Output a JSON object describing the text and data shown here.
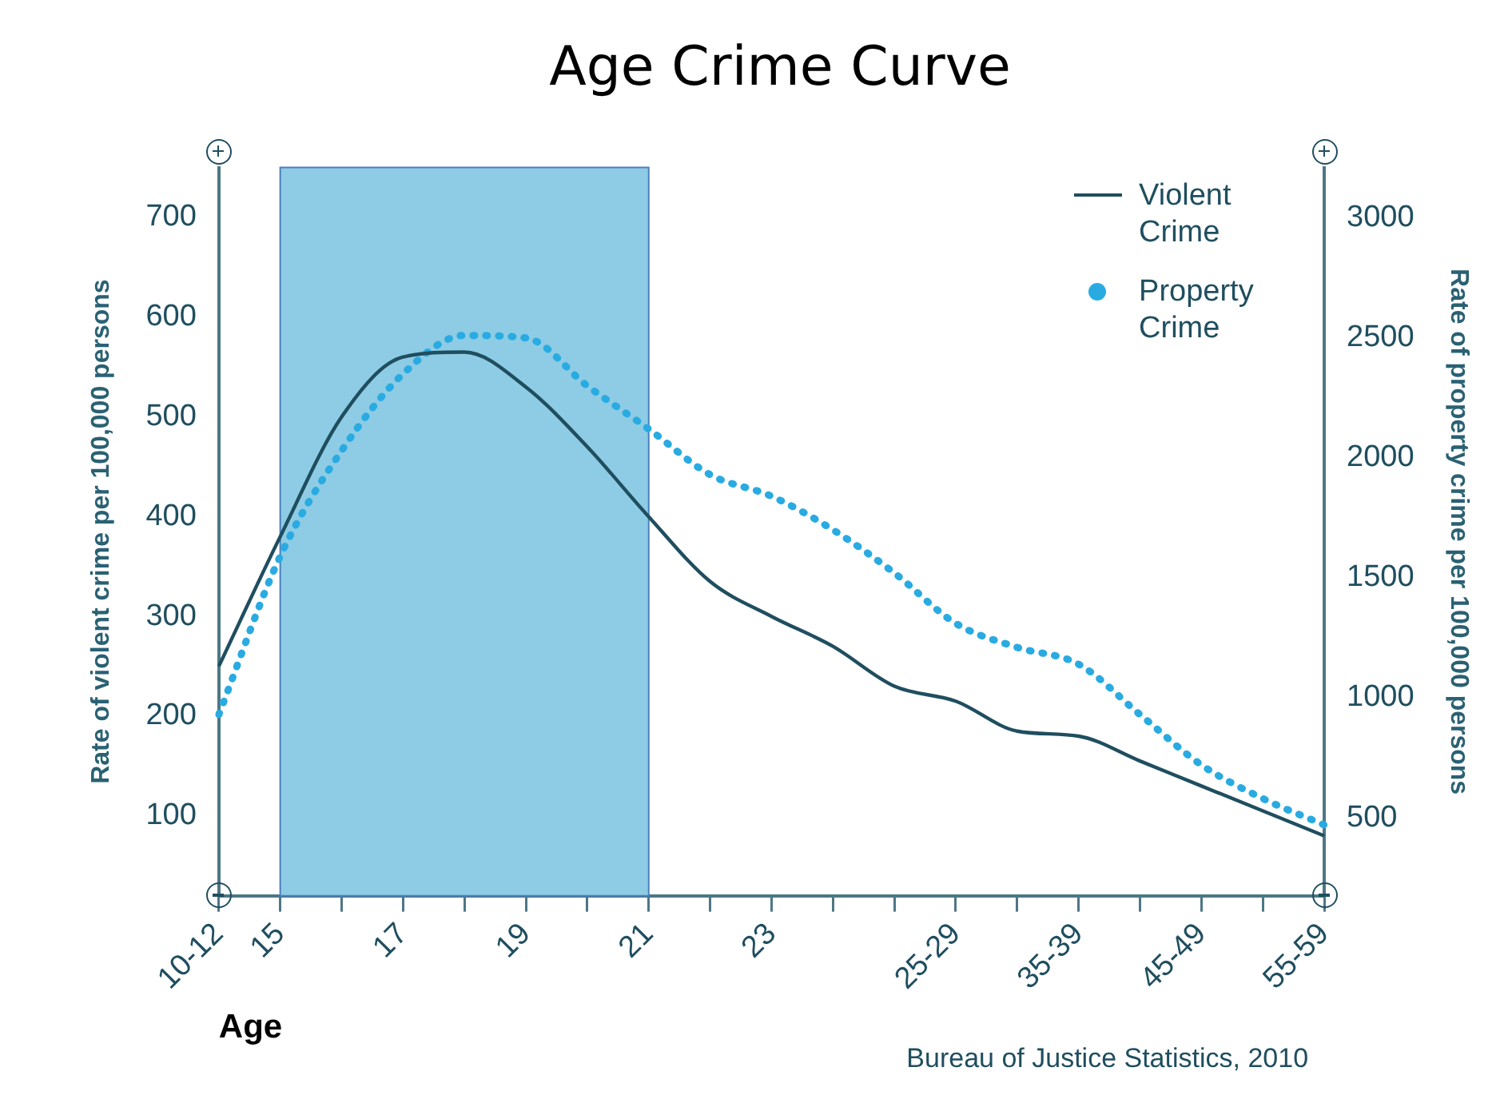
{
  "chart_data": {
    "type": "line",
    "title": "Age Crime Curve",
    "xlabel": "Age",
    "ylabel": "Rate of violent crime per 100,000 persons",
    "y2label": "Rate of property crime per 100,000 persons",
    "annotations": [
      "Bureau of Justice Statistics, 2010"
    ],
    "categories": [
      "10-12",
      "15",
      null,
      "17",
      null,
      "19",
      null,
      "21",
      null,
      "23",
      null,
      null,
      "25-29",
      null,
      "35-39",
      null,
      "45-49",
      null,
      "55-59"
    ],
    "series": [
      {
        "name": "Violent Crime",
        "color": "#1f4e5f",
        "line_style": "solid",
        "values": [
          250,
          380,
          500,
          560,
          565,
          530,
          470,
          400,
          335,
          300,
          270,
          230,
          215,
          185,
          180,
          155,
          130,
          105,
          80
        ]
      },
      {
        "name": "Property Crime",
        "color": "#29abe2",
        "axis": "y2",
        "line_style": "dotted",
        "values": [
          930,
          1590,
          2030,
          2350,
          2510,
          2500,
          2300,
          2120,
          1930,
          1840,
          1700,
          1520,
          1310,
          1210,
          1140,
          930,
          720,
          580,
          470
        ]
      }
    ],
    "ylim": [
      20,
      750
    ],
    "yticks": [
      100,
      200,
      300,
      400,
      500,
      600,
      700
    ],
    "y2lim": [
      175,
      3210
    ],
    "y2ticks": [
      500,
      1000,
      1500,
      2000,
      2500,
      3000
    ],
    "bands": [
      {
        "axis": "x",
        "from": "15",
        "to": "21",
        "color": "#8dcce4"
      }
    ],
    "grid": false,
    "legend": "top right",
    "marker": "none"
  }
}
